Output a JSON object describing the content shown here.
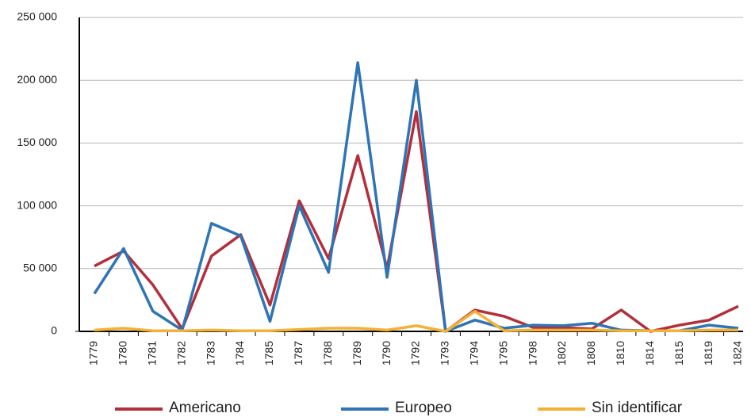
{
  "chart_data": {
    "type": "line",
    "categories": [
      "1779",
      "1780",
      "1781",
      "1782",
      "1783",
      "1784",
      "1785",
      "1787",
      "1788",
      "1789",
      "1790",
      "1792",
      "1793",
      "1794",
      "1795",
      "1798",
      "1802",
      "1808",
      "1810",
      "1814",
      "1815",
      "1819",
      "1824"
    ],
    "series": [
      {
        "name": "Americano",
        "color": "#b22f3b",
        "values": [
          52000,
          64000,
          37000,
          2000,
          60000,
          77000,
          21000,
          104000,
          58000,
          140000,
          50000,
          175000,
          0,
          17000,
          12000,
          3000,
          3000,
          2000,
          17000,
          0,
          5000,
          9000,
          20000
        ]
      },
      {
        "name": "Europeo",
        "color": "#2f74b5",
        "values": [
          30000,
          66000,
          16000,
          1000,
          86000,
          76000,
          8000,
          100000,
          47000,
          214000,
          43000,
          200000,
          0,
          9000,
          2500,
          5000,
          4500,
          6500,
          1000,
          500,
          500,
          5000,
          2500
        ]
      },
      {
        "name": "Sin identificar",
        "color": "#f4b136",
        "values": [
          1000,
          2500,
          500,
          500,
          1000,
          500,
          500,
          1500,
          2500,
          2500,
          1000,
          4500,
          0,
          16000,
          500,
          1000,
          1000,
          1000,
          500,
          500,
          500,
          1000,
          1000
        ]
      }
    ],
    "ylim": [
      0,
      250000
    ],
    "yticks": [
      0,
      {
        "value": 50000,
        "label": "50 000"
      },
      {
        "value": 100000,
        "label": "100 000"
      },
      {
        "value": 150000,
        "label": "150 000"
      },
      {
        "value": 200000,
        "label": "200 000"
      },
      {
        "value": 250000,
        "label": "250 000"
      }
    ],
    "grid": true
  }
}
